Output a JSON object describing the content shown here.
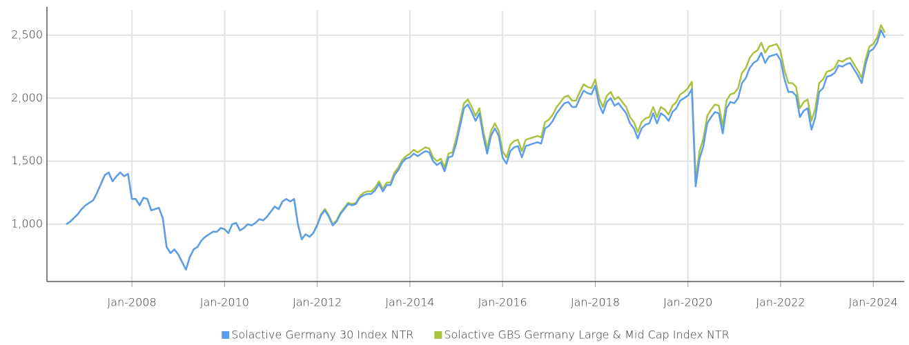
{
  "chart_data": {
    "type": "line",
    "x": [
      "2006-08",
      "2006-09",
      "2006-10",
      "2006-11",
      "2006-12",
      "2007-01",
      "2007-02",
      "2007-03",
      "2007-04",
      "2007-05",
      "2007-06",
      "2007-07",
      "2007-08",
      "2007-09",
      "2007-10",
      "2007-11",
      "2007-12",
      "2008-01",
      "2008-02",
      "2008-03",
      "2008-04",
      "2008-05",
      "2008-06",
      "2008-07",
      "2008-08",
      "2008-09",
      "2008-10",
      "2008-11",
      "2008-12",
      "2009-01",
      "2009-02",
      "2009-03",
      "2009-04",
      "2009-05",
      "2009-06",
      "2009-07",
      "2009-08",
      "2009-09",
      "2009-10",
      "2009-11",
      "2009-12",
      "2010-01",
      "2010-02",
      "2010-03",
      "2010-04",
      "2010-05",
      "2010-06",
      "2010-07",
      "2010-08",
      "2010-09",
      "2010-10",
      "2010-11",
      "2010-12",
      "2011-01",
      "2011-02",
      "2011-03",
      "2011-04",
      "2011-05",
      "2011-06",
      "2011-07",
      "2011-08",
      "2011-09",
      "2011-10",
      "2011-11",
      "2011-12",
      "2012-01",
      "2012-02",
      "2012-03",
      "2012-04",
      "2012-05",
      "2012-06",
      "2012-07",
      "2012-08",
      "2012-09",
      "2012-10",
      "2012-11",
      "2012-12",
      "2013-01",
      "2013-02",
      "2013-03",
      "2013-04",
      "2013-05",
      "2013-06",
      "2013-07",
      "2013-08",
      "2013-09",
      "2013-10",
      "2013-11",
      "2013-12",
      "2014-01",
      "2014-02",
      "2014-03",
      "2014-04",
      "2014-05",
      "2014-06",
      "2014-07",
      "2014-08",
      "2014-09",
      "2014-10",
      "2014-11",
      "2014-12",
      "2015-01",
      "2015-02",
      "2015-03",
      "2015-04",
      "2015-05",
      "2015-06",
      "2015-07",
      "2015-08",
      "2015-09",
      "2015-10",
      "2015-11",
      "2015-12",
      "2016-01",
      "2016-02",
      "2016-03",
      "2016-04",
      "2016-05",
      "2016-06",
      "2016-07",
      "2016-08",
      "2016-09",
      "2016-10",
      "2016-11",
      "2016-12",
      "2017-01",
      "2017-02",
      "2017-03",
      "2017-04",
      "2017-05",
      "2017-06",
      "2017-07",
      "2017-08",
      "2017-09",
      "2017-10",
      "2017-11",
      "2017-12",
      "2018-01",
      "2018-02",
      "2018-03",
      "2018-04",
      "2018-05",
      "2018-06",
      "2018-07",
      "2018-08",
      "2018-09",
      "2018-10",
      "2018-11",
      "2018-12",
      "2019-01",
      "2019-02",
      "2019-03",
      "2019-04",
      "2019-05",
      "2019-06",
      "2019-07",
      "2019-08",
      "2019-09",
      "2019-10",
      "2019-11",
      "2019-12",
      "2020-01",
      "2020-02",
      "2020-03",
      "2020-04",
      "2020-05",
      "2020-06",
      "2020-07",
      "2020-08",
      "2020-09",
      "2020-10",
      "2020-11",
      "2020-12",
      "2021-01",
      "2021-02",
      "2021-03",
      "2021-04",
      "2021-05",
      "2021-06",
      "2021-07",
      "2021-08",
      "2021-09",
      "2021-10",
      "2021-11",
      "2021-12",
      "2022-01",
      "2022-02",
      "2022-03",
      "2022-04",
      "2022-05",
      "2022-06",
      "2022-07",
      "2022-08",
      "2022-09",
      "2022-10",
      "2022-11",
      "2022-12",
      "2023-01",
      "2023-02",
      "2023-03",
      "2023-04",
      "2023-05",
      "2023-06",
      "2023-07",
      "2023-08",
      "2023-09",
      "2023-10",
      "2023-11",
      "2023-12",
      "2024-01",
      "2024-02",
      "2024-03",
      "2024-04"
    ],
    "series": [
      {
        "name": "Solactive GBS Germany Large & Mid Cap Index NTR",
        "color": "#a9c23f",
        "values": [
          1000,
          1020,
          1050,
          1080,
          1120,
          1150,
          1170,
          1190,
          1250,
          1320,
          1390,
          1410,
          1340,
          1380,
          1410,
          1380,
          1400,
          1200,
          1200,
          1150,
          1210,
          1200,
          1110,
          1120,
          1130,
          1050,
          820,
          770,
          800,
          760,
          700,
          640,
          740,
          800,
          820,
          870,
          900,
          920,
          940,
          940,
          970,
          960,
          930,
          1000,
          1010,
          950,
          970,
          1000,
          990,
          1010,
          1040,
          1030,
          1060,
          1100,
          1140,
          1120,
          1180,
          1200,
          1180,
          1200,
          1000,
          880,
          920,
          900,
          930,
          1000,
          1080,
          1120,
          1070,
          1000,
          1030,
          1090,
          1130,
          1170,
          1160,
          1170,
          1220,
          1250,
          1260,
          1260,
          1290,
          1340,
          1280,
          1330,
          1330,
          1410,
          1450,
          1510,
          1540,
          1560,
          1590,
          1570,
          1590,
          1610,
          1600,
          1530,
          1500,
          1520,
          1450,
          1560,
          1570,
          1680,
          1820,
          1960,
          1990,
          1930,
          1860,
          1920,
          1740,
          1600,
          1740,
          1800,
          1740,
          1580,
          1530,
          1630,
          1660,
          1670,
          1580,
          1670,
          1680,
          1690,
          1700,
          1690,
          1810,
          1830,
          1870,
          1930,
          1970,
          2010,
          2020,
          1980,
          1980,
          2050,
          2110,
          2090,
          2080,
          2150,
          2000,
          1930,
          2020,
          2050,
          1990,
          2010,
          1970,
          1930,
          1850,
          1810,
          1730,
          1810,
          1840,
          1850,
          1930,
          1850,
          1930,
          1910,
          1870,
          1940,
          1970,
          2030,
          2050,
          2080,
          2130,
          1360,
          1580,
          1680,
          1860,
          1910,
          1950,
          1940,
          1780,
          1980,
          2030,
          2040,
          2080,
          2200,
          2240,
          2320,
          2360,
          2380,
          2440,
          2360,
          2410,
          2420,
          2430,
          2370,
          2220,
          2120,
          2120,
          2090,
          1920,
          1970,
          1990,
          1820,
          1920,
          2120,
          2150,
          2210,
          2220,
          2240,
          2300,
          2290,
          2310,
          2320,
          2270,
          2220,
          2160,
          2310,
          2410,
          2430,
          2480,
          2580,
          2520
        ]
      },
      {
        "name": "Solactive Germany 30 Index NTR",
        "color": "#5b9ded",
        "values": [
          1000,
          1020,
          1050,
          1080,
          1120,
          1150,
          1170,
          1190,
          1250,
          1320,
          1390,
          1410,
          1340,
          1380,
          1410,
          1380,
          1400,
          1200,
          1200,
          1150,
          1210,
          1200,
          1110,
          1120,
          1130,
          1050,
          820,
          770,
          800,
          760,
          700,
          640,
          740,
          800,
          820,
          870,
          900,
          920,
          940,
          940,
          970,
          960,
          930,
          1000,
          1010,
          950,
          970,
          1000,
          990,
          1010,
          1040,
          1030,
          1060,
          1100,
          1140,
          1120,
          1180,
          1200,
          1180,
          1200,
          1000,
          880,
          920,
          900,
          930,
          990,
          1070,
          1110,
          1060,
          990,
          1020,
          1080,
          1120,
          1160,
          1150,
          1160,
          1210,
          1230,
          1240,
          1240,
          1270,
          1320,
          1260,
          1310,
          1310,
          1390,
          1430,
          1490,
          1520,
          1530,
          1560,
          1540,
          1560,
          1580,
          1570,
          1500,
          1470,
          1490,
          1420,
          1530,
          1540,
          1640,
          1780,
          1920,
          1950,
          1890,
          1820,
          1880,
          1700,
          1560,
          1700,
          1760,
          1700,
          1530,
          1480,
          1580,
          1610,
          1620,
          1530,
          1620,
          1630,
          1640,
          1650,
          1640,
          1760,
          1780,
          1820,
          1880,
          1920,
          1960,
          1970,
          1930,
          1930,
          2000,
          2060,
          2040,
          2030,
          2100,
          1950,
          1880,
          1970,
          2000,
          1940,
          1960,
          1920,
          1880,
          1800,
          1760,
          1680,
          1760,
          1790,
          1800,
          1880,
          1800,
          1880,
          1860,
          1820,
          1890,
          1920,
          1980,
          2000,
          2020,
          2070,
          1300,
          1520,
          1620,
          1800,
          1850,
          1890,
          1880,
          1720,
          1920,
          1970,
          1960,
          2000,
          2120,
          2160,
          2240,
          2280,
          2300,
          2360,
          2280,
          2330,
          2340,
          2350,
          2300,
          2150,
          2050,
          2050,
          2020,
          1850,
          1900,
          1920,
          1750,
          1850,
          2050,
          2080,
          2170,
          2180,
          2200,
          2260,
          2250,
          2270,
          2280,
          2230,
          2180,
          2120,
          2270,
          2370,
          2390,
          2440,
          2540,
          2480
        ]
      }
    ],
    "xlim": [
      "2006-03",
      "2024-09"
    ],
    "xticks": [
      {
        "value": "2008-01",
        "label": "Jan-2008"
      },
      {
        "value": "2010-01",
        "label": "Jan-2010"
      },
      {
        "value": "2012-01",
        "label": "Jan-2012"
      },
      {
        "value": "2014-01",
        "label": "Jan-2014"
      },
      {
        "value": "2016-01",
        "label": "Jan-2016"
      },
      {
        "value": "2018-01",
        "label": "Jan-2018"
      },
      {
        "value": "2020-01",
        "label": "Jan-2020"
      },
      {
        "value": "2022-01",
        "label": "Jan-2022"
      },
      {
        "value": "2024-01",
        "label": "Jan-2024"
      }
    ],
    "ylim": [
      545,
      2697
    ],
    "yticks": [
      {
        "value": 1000,
        "label": "1,000"
      },
      {
        "value": 1500,
        "label": "1,500"
      },
      {
        "value": 2000,
        "label": "2,000"
      },
      {
        "value": 2500,
        "label": "2,500"
      }
    ],
    "grid": true
  }
}
